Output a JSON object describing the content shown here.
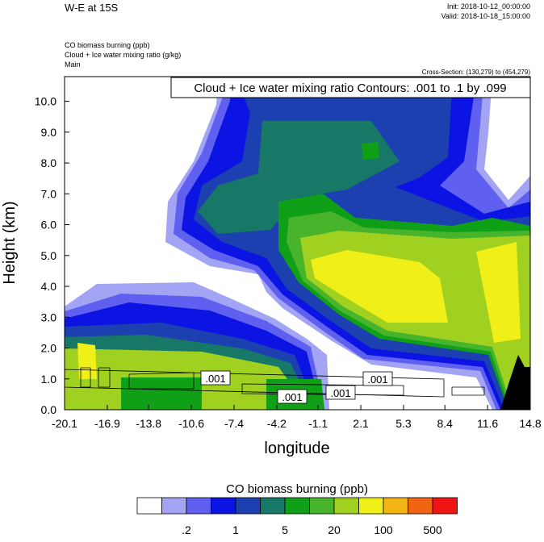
{
  "chart_data": {
    "type": "contour",
    "title": "W-E at 15S",
    "init": "Init: 2018-10-12_00:00:00",
    "valid": "Valid: 2018-10-18_15:00:00",
    "field_lines": [
      "CO biomass burning   (ppb)",
      "Cloud + Ice water mixing ratio   (g/kg)",
      "Main"
    ],
    "cross_section": "Cross-Section: (130,279) to (454,279)",
    "contour_info": "Cloud + Ice water mixing ratio Contours: .001 to .1 by .099",
    "contour_labels": [
      ".001",
      ".001",
      ".001",
      ".001"
    ],
    "xlabel": "longitude",
    "ylabel": "Height (km)",
    "xlim": [
      -20.1,
      14.8
    ],
    "xticks": [
      -20.1,
      -16.9,
      -13.8,
      -10.6,
      -7.4,
      -4.2,
      -1.1,
      2.1,
      5.3,
      8.4,
      11.6,
      14.8
    ],
    "ylim": [
      0,
      10.8
    ],
    "yticks": [
      {
        "value": 0,
        "label": "0.0"
      },
      {
        "value": 1,
        "label": "1.0"
      },
      {
        "value": 2,
        "label": "2.0"
      },
      {
        "value": 3,
        "label": "3.0"
      },
      {
        "value": 4,
        "label": "4.0"
      },
      {
        "value": 5,
        "label": "5.0"
      },
      {
        "value": 6,
        "label": "6.0"
      },
      {
        "value": 7,
        "label": "7.0"
      },
      {
        "value": 8,
        "label": "8.0"
      },
      {
        "value": 9,
        "label": "9.0"
      },
      {
        "value": 10,
        "label": "10.0"
      }
    ],
    "colorbar": {
      "title": "CO biomass burning  (ppb)",
      "colors": [
        "#ffffff",
        "#a4a4f4",
        "#6060f0",
        "#0c14e4",
        "#1c40b0",
        "#187868",
        "#10a018",
        "#48b42c",
        "#a0d020",
        "#f0f018",
        "#f4b414",
        "#f06414",
        "#f01414"
      ],
      "labels": [
        {
          "value": 0.2,
          "label": ".2"
        },
        1,
        5,
        20,
        100,
        500
      ]
    }
  }
}
